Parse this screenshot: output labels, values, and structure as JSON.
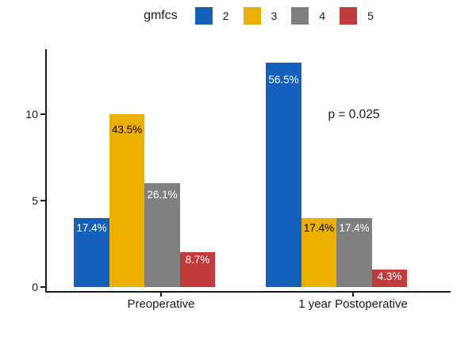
{
  "chart_data": {
    "type": "bar",
    "title": "",
    "xlabel": "",
    "ylabel": "",
    "grid": false,
    "legend": {
      "title": "gmfcs",
      "position": "top",
      "entries": [
        {
          "label": "2",
          "color": "#1560BD"
        },
        {
          "label": "3",
          "color": "#EBB000"
        },
        {
          "label": "4",
          "color": "#7F7F7F"
        },
        {
          "label": "5",
          "color": "#C13B3B"
        }
      ]
    },
    "categories": [
      "Preoperative",
      "1 year Postoperative"
    ],
    "series": [
      {
        "name": "2",
        "color": "#1560BD",
        "label_color": "#FFFFFF",
        "values": [
          4,
          13
        ],
        "bar_labels": [
          "17.4%",
          "56.5%"
        ]
      },
      {
        "name": "3",
        "color": "#EBB000",
        "label_color": "#000000",
        "values": [
          10,
          4
        ],
        "bar_labels": [
          "43.5%",
          "17.4%"
        ]
      },
      {
        "name": "4",
        "color": "#7F7F7F",
        "label_color": "#FFFFFF",
        "values": [
          6,
          4
        ],
        "bar_labels": [
          "26.1%",
          "17.4%"
        ]
      },
      {
        "name": "5",
        "color": "#C13B3B",
        "label_color": "#FFFFFF",
        "values": [
          2,
          1
        ],
        "bar_labels": [
          "8.7%",
          "4.3%"
        ]
      }
    ],
    "annotation": "p = 0.025",
    "yticks": [
      0,
      5,
      10
    ],
    "ylim": [
      0,
      13.65
    ]
  }
}
